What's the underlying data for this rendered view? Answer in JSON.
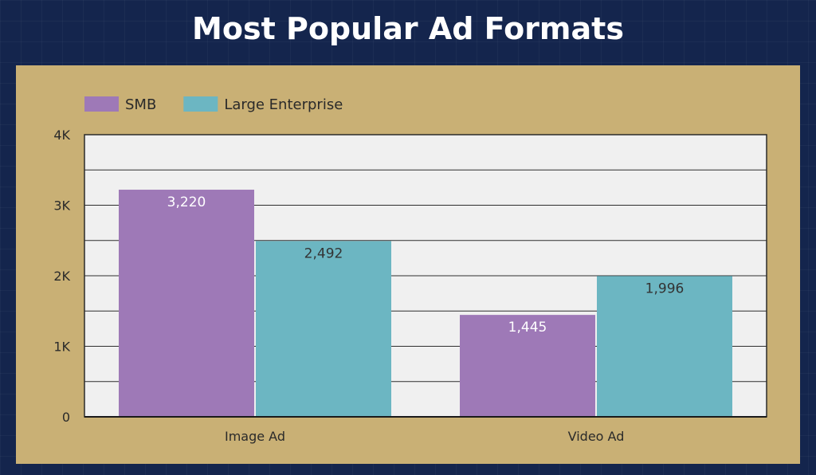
{
  "title": "Most Popular Ad Formats",
  "colors": {
    "background": "#14254d",
    "panel": "#c9b075",
    "plot_area": "#f0f0f0"
  },
  "chart_data": {
    "type": "bar",
    "categories": [
      "Image Ad",
      "Video Ad"
    ],
    "series": [
      {
        "name": "SMB",
        "values": [
          3220,
          1445
        ],
        "labels": [
          "3,220",
          "1,445"
        ],
        "color": "#9e79b7",
        "label_color": "#ffffff"
      },
      {
        "name": "Large Enterprise",
        "values": [
          2492,
          1996
        ],
        "labels": [
          "2,492",
          "1,996"
        ],
        "color": "#6cb6c2",
        "label_color": "#333333"
      }
    ],
    "ylim": [
      0,
      4000
    ],
    "yticks": [
      0,
      1000,
      2000,
      3000,
      4000
    ],
    "ytick_labels": [
      "0",
      "1K",
      "2K",
      "3K",
      "4K"
    ],
    "xlabel": "",
    "ylabel": "",
    "legend_position": "top-left",
    "grid": true
  }
}
